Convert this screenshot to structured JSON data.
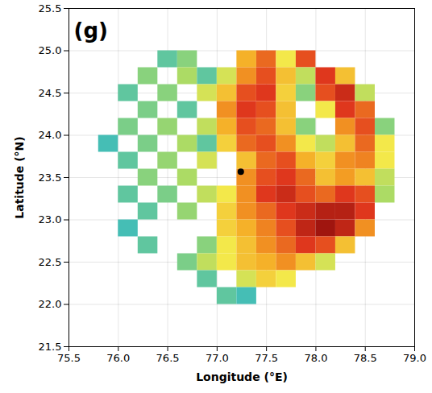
{
  "chart_data": {
    "type": "heatmap",
    "title": "(g)",
    "x_label": "Longitude (°E)",
    "y_label": "Latitude (°N)",
    "xlim": [
      75.5,
      79.0
    ],
    "ylim": [
      21.5,
      25.5
    ],
    "xticks": [
      75.5,
      {
        "value": 76,
        "label": "76.0"
      },
      76.5,
      {
        "value": 77,
        "label": "77.0"
      },
      77.5,
      {
        "value": 78,
        "label": "78.0"
      },
      78.5,
      {
        "value": 79,
        "label": "79.0"
      }
    ],
    "yticks": [
      21.5,
      {
        "value": 22,
        "label": "22.0"
      },
      22.5,
      {
        "value": 23,
        "label": "23.0"
      },
      23.5,
      {
        "value": 24,
        "label": "24.0"
      },
      24.5,
      {
        "value": 25,
        "label": "25.0"
      },
      25.5
    ],
    "grid": true,
    "tick_labels": true,
    "cells": {
      "cell_size": 0.2,
      "lons": [
        75.9,
        76.1,
        76.3,
        76.5,
        76.7,
        76.9,
        77.1,
        77.3,
        77.5,
        77.7,
        77.9,
        78.1,
        78.3,
        78.5,
        78.7
      ],
      "lats": [
        24.9,
        24.7,
        24.5,
        24.3,
        24.1,
        23.9,
        23.7,
        23.5,
        23.3,
        23.1,
        22.9,
        22.7,
        22.5,
        22.3,
        22.1
      ],
      "values": [
        [
          null,
          null,
          null,
          12,
          15,
          null,
          null,
          32,
          38,
          25,
          40,
          null,
          null,
          null,
          null
        ],
        [
          null,
          null,
          15,
          null,
          18,
          12,
          22,
          35,
          40,
          30,
          20,
          42,
          30,
          null,
          null
        ],
        [
          null,
          12,
          null,
          15,
          null,
          22,
          30,
          40,
          42,
          28,
          15,
          40,
          44,
          20,
          null
        ],
        [
          null,
          null,
          14,
          null,
          12,
          null,
          35,
          42,
          40,
          30,
          null,
          25,
          42,
          38,
          null
        ],
        [
          null,
          14,
          null,
          16,
          null,
          20,
          32,
          40,
          38,
          30,
          15,
          null,
          35,
          40,
          15
        ],
        [
          10,
          null,
          14,
          null,
          18,
          12,
          28,
          38,
          40,
          35,
          25,
          20,
          30,
          38,
          25
        ],
        [
          null,
          12,
          null,
          16,
          null,
          22,
          null,
          30,
          38,
          40,
          32,
          28,
          35,
          36,
          25
        ],
        [
          null,
          null,
          15,
          null,
          18,
          null,
          null,
          35,
          40,
          42,
          38,
          30,
          34,
          30,
          20
        ],
        [
          null,
          12,
          null,
          14,
          null,
          20,
          25,
          35,
          42,
          44,
          40,
          38,
          42,
          40,
          18
        ],
        [
          null,
          null,
          12,
          null,
          16,
          null,
          28,
          35,
          38,
          42,
          44,
          46,
          46,
          42,
          null
        ],
        [
          null,
          10,
          null,
          null,
          null,
          null,
          28,
          32,
          36,
          40,
          45,
          48,
          45,
          35,
          null
        ],
        [
          null,
          null,
          12,
          null,
          null,
          15,
          25,
          30,
          35,
          38,
          42,
          40,
          30,
          null,
          null
        ],
        [
          null,
          null,
          null,
          null,
          14,
          20,
          25,
          30,
          32,
          35,
          30,
          22,
          null,
          null,
          null
        ],
        [
          null,
          null,
          null,
          null,
          null,
          12,
          null,
          22,
          28,
          25,
          null,
          null,
          null,
          null,
          null
        ],
        [
          null,
          null,
          null,
          null,
          null,
          null,
          12,
          10,
          null,
          null,
          null,
          null,
          null,
          null,
          null
        ]
      ],
      "zlim": [
        0,
        50
      ]
    },
    "points": {
      "x": [
        77.24
      ],
      "y": [
        23.57
      ],
      "color": "black",
      "marker": "circle"
    }
  }
}
